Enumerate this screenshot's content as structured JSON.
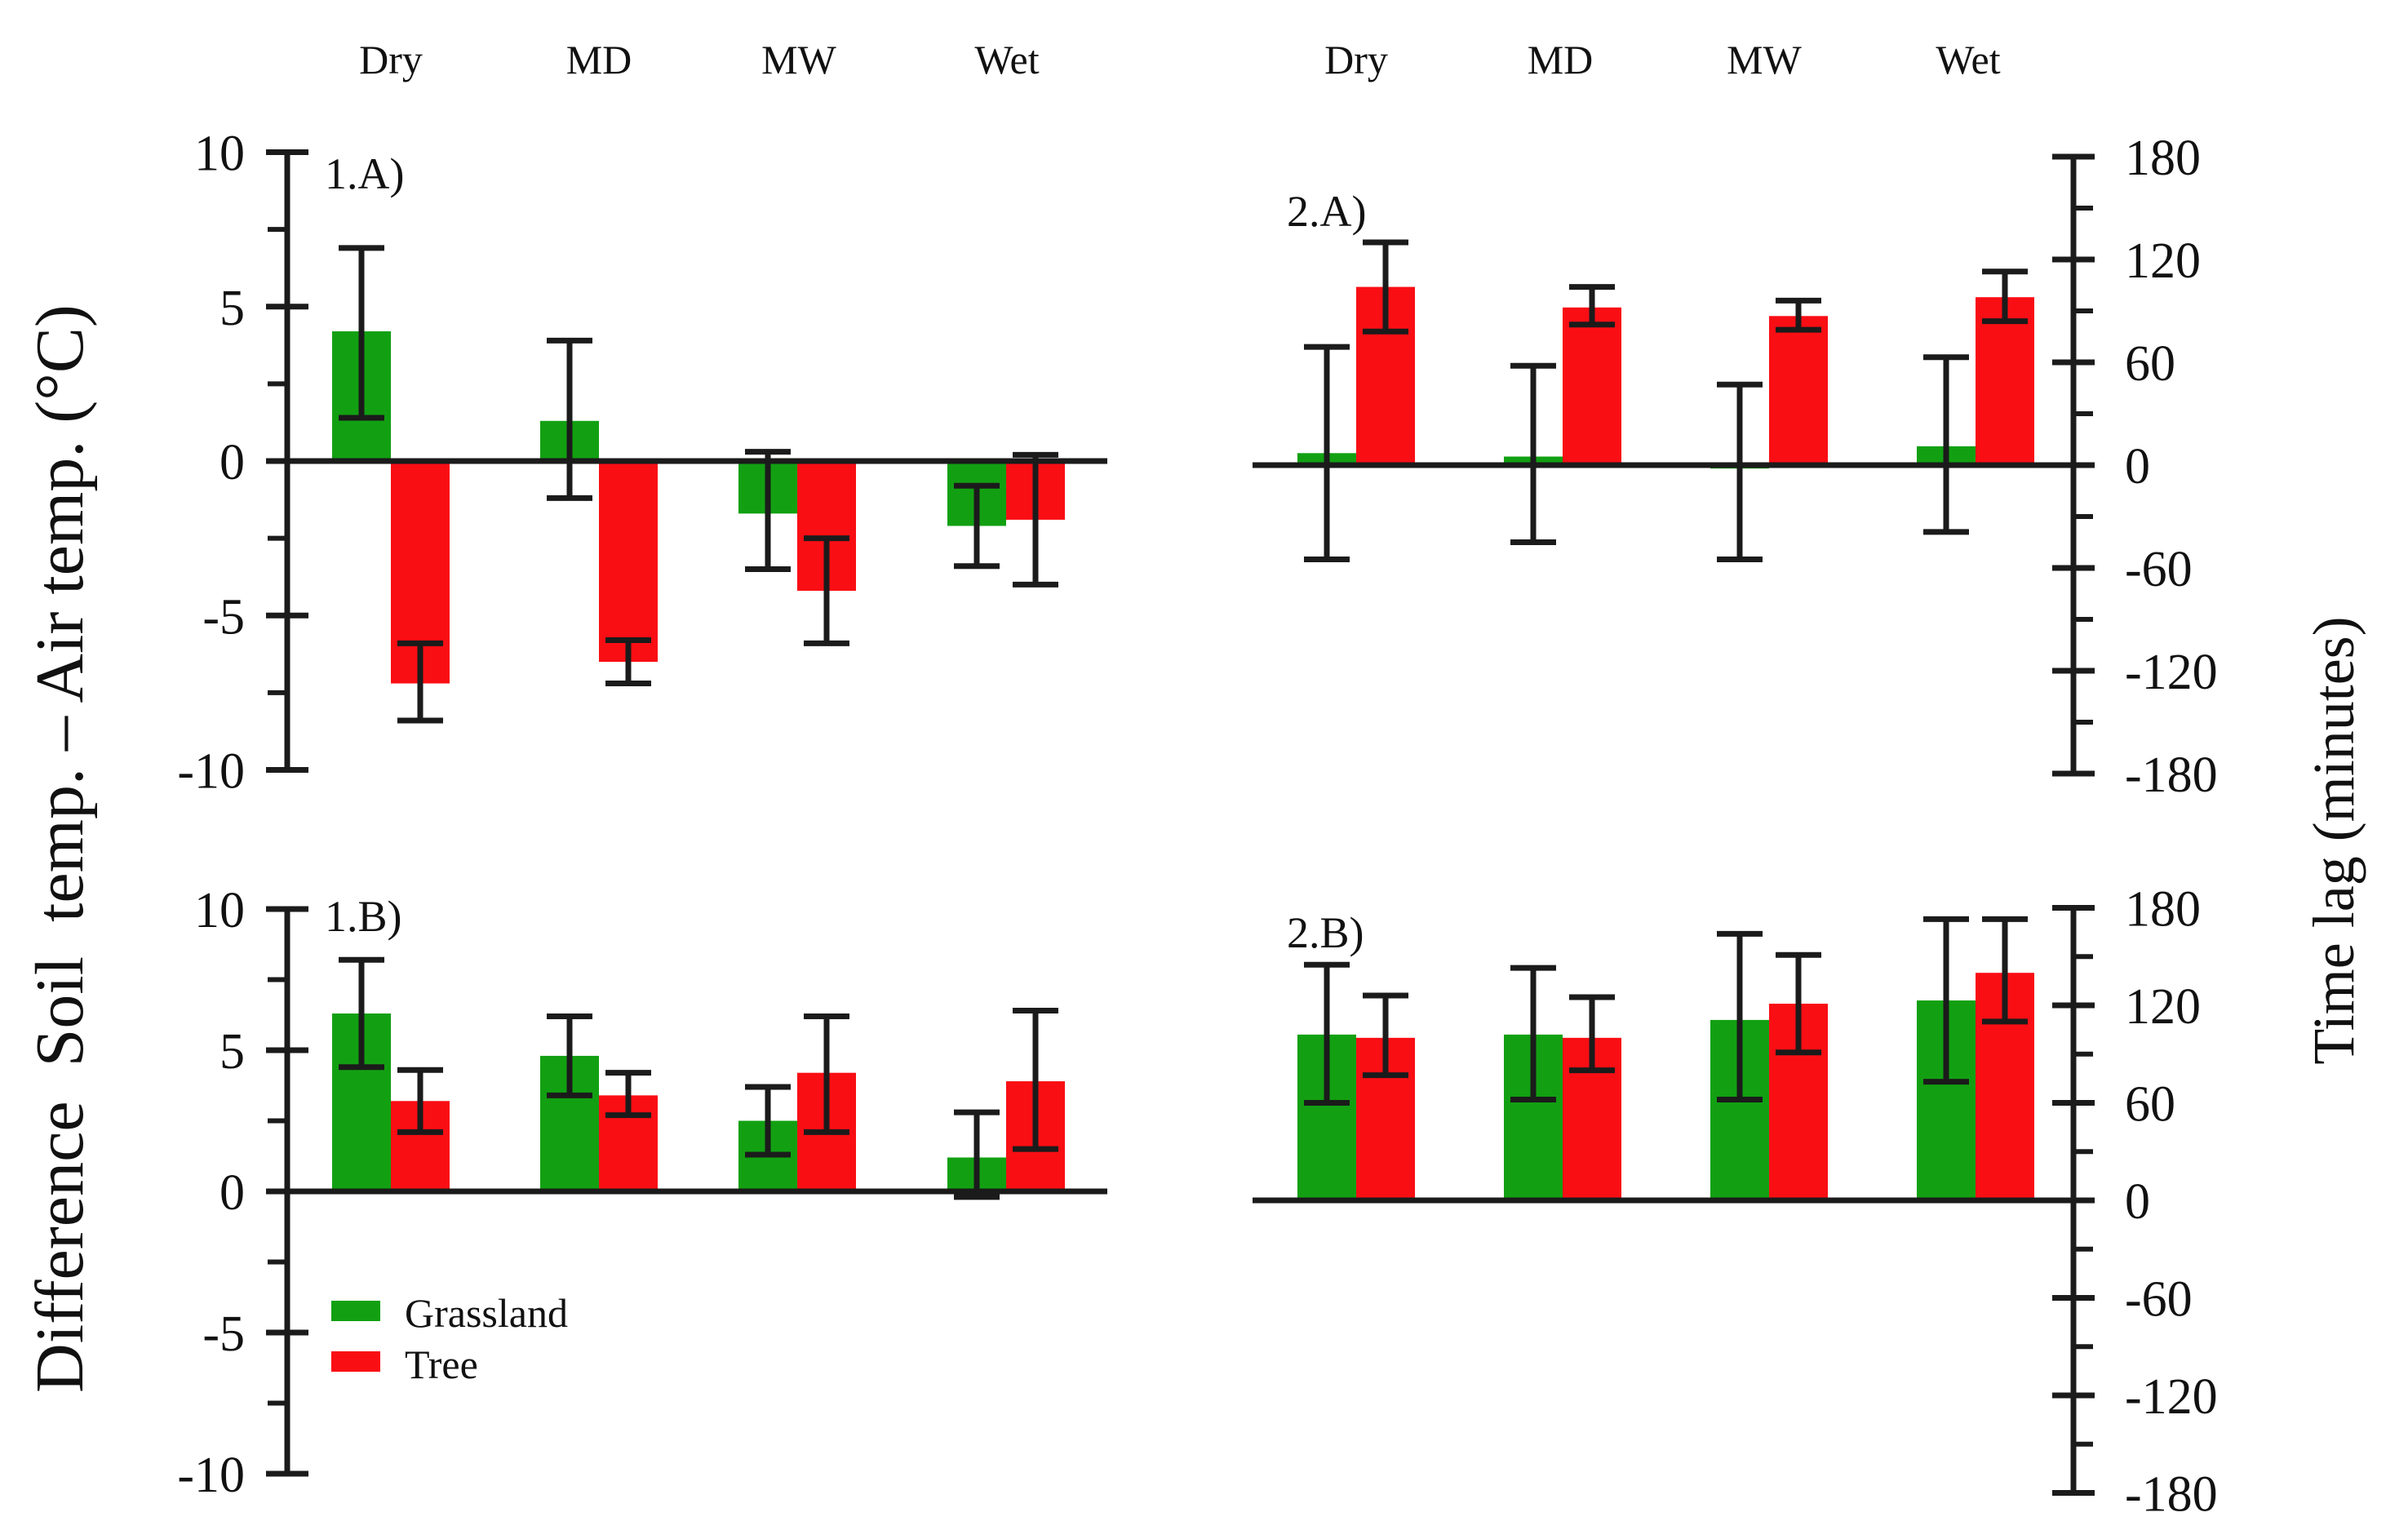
{
  "figure": {
    "background": "#ffffff",
    "text_color": "#111111",
    "axis_color": "#1b1b1b"
  },
  "chart_data": {
    "type": "bar",
    "categories": [
      "Dry",
      "MD",
      "MW",
      "Wet"
    ],
    "legend": [
      {
        "name": "Grassland",
        "color": "#12a012"
      },
      {
        "name": "Tree",
        "color": "#f90e14"
      }
    ],
    "y_left": {
      "title": "Difference  Soil  temp. – Air temp. (°C)",
      "units": "°C",
      "range": [
        -10,
        10
      ],
      "major_ticks": [
        10,
        5,
        0,
        -5,
        -10
      ],
      "minor_step": 2.5
    },
    "y_right": {
      "title": "Time lag (minutes)",
      "units": "minutes",
      "range": [
        -180,
        180
      ],
      "major_ticks": [
        180,
        120,
        60,
        0,
        -60,
        -120,
        -180
      ],
      "minor_step": 30
    },
    "panels": [
      {
        "id": "1A",
        "label": "1.A)",
        "axis": "y_left",
        "series": [
          {
            "name": "Grassland",
            "values": [
              4.2,
              1.3,
              -1.7,
              -2.1
            ],
            "err_lo": [
              1.4,
              -1.2,
              -3.5,
              -3.4
            ],
            "err_hi": [
              6.9,
              3.9,
              0.3,
              -0.8
            ]
          },
          {
            "name": "Tree",
            "values": [
              -7.2,
              -6.5,
              -4.2,
              -1.9
            ],
            "err_lo": [
              -8.4,
              -7.2,
              -5.9,
              -4.0
            ],
            "err_hi": [
              -5.9,
              -5.8,
              -2.5,
              0.2
            ]
          }
        ]
      },
      {
        "id": "2A",
        "label": "2.A)",
        "axis": "y_right",
        "series": [
          {
            "name": "Grassland",
            "values": [
              7,
              5,
              -2,
              11
            ],
            "err_lo": [
              -55,
              -45,
              -55,
              -39
            ],
            "err_hi": [
              69,
              58,
              47,
              63
            ]
          },
          {
            "name": "Tree",
            "values": [
              104,
              92,
              87,
              98
            ],
            "err_lo": [
              78,
              82,
              79,
              84
            ],
            "err_hi": [
              130,
              104,
              96,
              113
            ]
          }
        ]
      },
      {
        "id": "1B",
        "label": "1.B)",
        "axis": "y_left",
        "series": [
          {
            "name": "Grassland",
            "values": [
              6.3,
              4.8,
              2.5,
              1.2
            ],
            "err_lo": [
              4.4,
              3.4,
              1.3,
              -0.2
            ],
            "err_hi": [
              8.2,
              6.2,
              3.7,
              2.8
            ]
          },
          {
            "name": "Tree",
            "values": [
              3.2,
              3.4,
              4.2,
              3.9
            ],
            "err_lo": [
              2.1,
              2.7,
              2.1,
              1.5
            ],
            "err_hi": [
              4.3,
              4.2,
              6.2,
              6.4
            ]
          }
        ]
      },
      {
        "id": "2B",
        "label": "2.B)",
        "axis": "y_right",
        "series": [
          {
            "name": "Grassland",
            "values": [
              102,
              102,
              111,
              123
            ],
            "err_lo": [
              60,
              62,
              62,
              73
            ],
            "err_hi": [
              145,
              143,
              164,
              173
            ]
          },
          {
            "name": "Tree",
            "values": [
              100,
              100,
              121,
              140
            ],
            "err_lo": [
              77,
              80,
              91,
              110
            ],
            "err_hi": [
              126,
              125,
              151,
              173
            ]
          }
        ]
      }
    ]
  }
}
